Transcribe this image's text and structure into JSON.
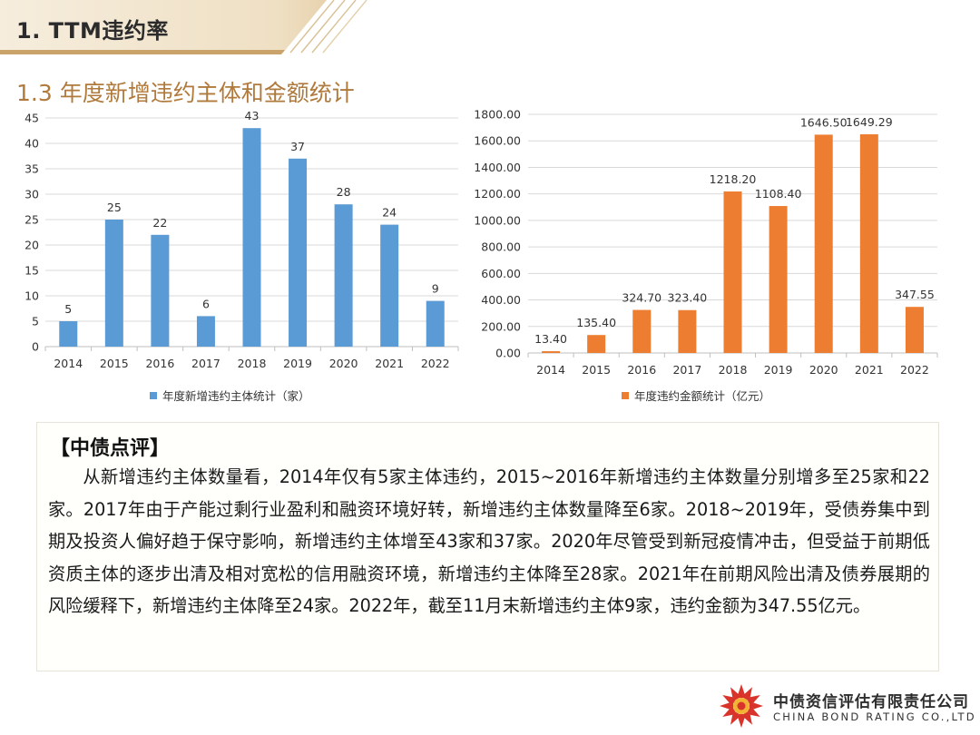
{
  "header": {
    "section_title": "1. TTM违约率",
    "subtitle": "1.3 年度新增违约主体和金额统计"
  },
  "chart_data": [
    {
      "type": "bar",
      "title": "",
      "categories": [
        "2014",
        "2015",
        "2016",
        "2017",
        "2018",
        "2019",
        "2020",
        "2021",
        "2022"
      ],
      "series": [
        {
          "name": "年度新增违约主体统计（家）",
          "values": [
            5,
            25,
            22,
            6,
            43,
            37,
            28,
            24,
            9
          ]
        }
      ],
      "value_labels": [
        "5",
        "25",
        "22",
        "6",
        "43",
        "37",
        "28",
        "24",
        "9"
      ],
      "y_ticks": [
        "0",
        "5",
        "10",
        "15",
        "20",
        "25",
        "30",
        "35",
        "40",
        "45"
      ],
      "ylim": [
        0,
        45
      ],
      "color": "#5b9bd5",
      "legend_position": "bottom",
      "xlabel": "",
      "ylabel": ""
    },
    {
      "type": "bar",
      "title": "",
      "categories": [
        "2014",
        "2015",
        "2016",
        "2017",
        "2018",
        "2019",
        "2020",
        "2021",
        "2022"
      ],
      "series": [
        {
          "name": "年度违约金额统计（亿元）",
          "values": [
            13.4,
            135.4,
            324.7,
            323.4,
            1218.2,
            1108.4,
            1646.5,
            1649.29,
            347.55
          ]
        }
      ],
      "value_labels": [
        "13.40",
        "135.40",
        "324.70",
        "323.40",
        "1218.20",
        "1108.40",
        "1646.50",
        "1649.29",
        "347.55"
      ],
      "y_ticks": [
        "0.00",
        "200.00",
        "400.00",
        "600.00",
        "800.00",
        "1000.00",
        "1200.00",
        "1400.00",
        "1600.00",
        "1800.00"
      ],
      "ylim": [
        0,
        1800
      ],
      "color": "#ed7d31",
      "legend_position": "bottom",
      "xlabel": "",
      "ylabel": ""
    }
  ],
  "comment": {
    "title": "【中债点评】",
    "body": "从新增违约主体数量看，2014年仅有5家主体违约，2015~2016年新增违约主体数量分别增多至25家和22家。2017年由于产能过剩行业盈利和融资环境好转，新增违约主体数量降至6家。2018~2019年，受债券集中到期及投资人偏好趋于保守影响，新增违约主体增至43家和37家。2020年尽管受到新冠疫情冲击，但受益于前期低资质主体的逐步出清及相对宽松的信用融资环境，新增违约主体降至28家。2021年在前期风险出清及债券展期的风险缓释下，新增违约主体降至24家。2022年，截至11月末新增违约主体9家，违约金额为347.55亿元。"
  },
  "brand": {
    "name_cn": "中债资信评估有限责任公司",
    "name_en": "CHINA BOND RATING CO.,LTD"
  },
  "colors": {
    "accent_gold": "#b07a3c",
    "band_light": "#f4ead8",
    "band_gold": "#caa36a",
    "logo_red": "#d9342b"
  }
}
